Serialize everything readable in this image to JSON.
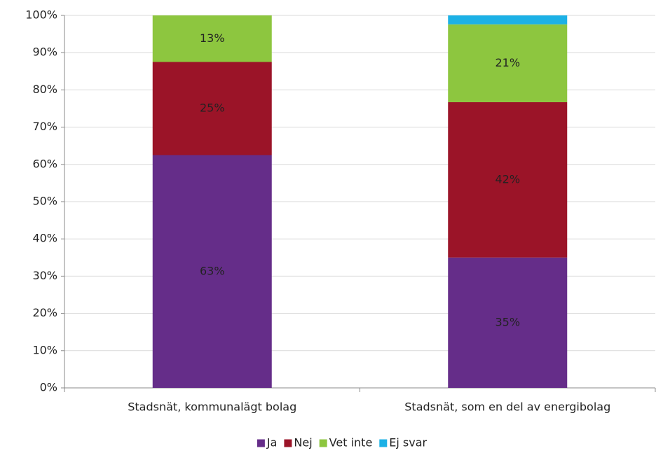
{
  "chart_data": {
    "type": "stacked_bar",
    "categories": [
      "Stadsnät, kommunalägt bolag",
      "Stadsnät, som en del av energibolag"
    ],
    "series": [
      {
        "name": "Ja",
        "color": "#652d89",
        "values": [
          62.5,
          35
        ],
        "value_labels": [
          "63%",
          "35%"
        ]
      },
      {
        "name": "Nej",
        "color": "#9b1428",
        "values": [
          25,
          41.7
        ],
        "value_labels": [
          "25%",
          "42%"
        ]
      },
      {
        "name": "Vet inte",
        "color": "#8dc63f",
        "values": [
          12.5,
          20.9
        ],
        "value_labels": [
          "13%",
          "21%"
        ]
      },
      {
        "name": "Ej svar",
        "color": "#1cb1e6",
        "values": [
          0,
          2.4
        ],
        "value_labels": [
          null,
          null
        ]
      }
    ],
    "ylim": [
      0,
      100
    ],
    "yticks": [
      {
        "value": 0,
        "label": "0%"
      },
      {
        "value": 10,
        "label": "10%"
      },
      {
        "value": 20,
        "label": "20%"
      },
      {
        "value": 30,
        "label": "30%"
      },
      {
        "value": 40,
        "label": "40%"
      },
      {
        "value": 50,
        "label": "50%"
      },
      {
        "value": 60,
        "label": "60%"
      },
      {
        "value": 70,
        "label": "70%"
      },
      {
        "value": 80,
        "label": "80%"
      },
      {
        "value": 90,
        "label": "90%"
      },
      {
        "value": 100,
        "label": "100%"
      }
    ],
    "grid": true,
    "legend": "bottom"
  }
}
